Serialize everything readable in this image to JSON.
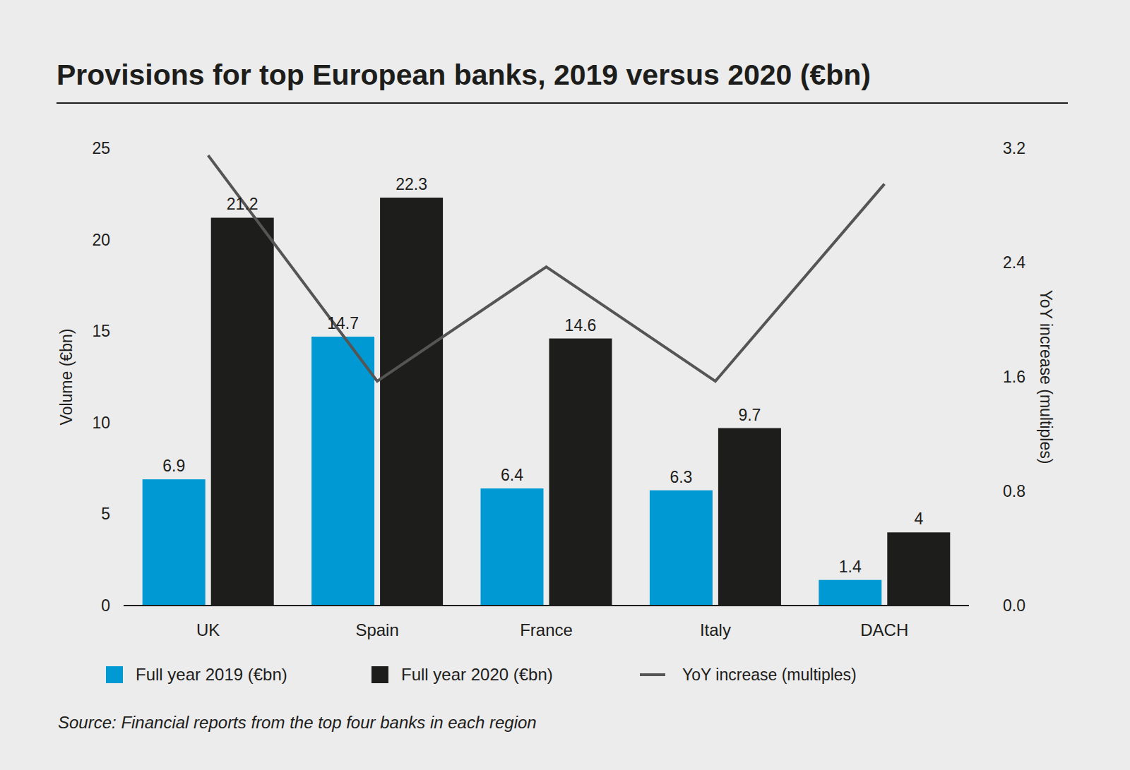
{
  "chart_data": {
    "type": "bar",
    "title": "Provisions for top European banks, 2019 versus 2020 (€bn)",
    "y_label": "Volume (€bn)",
    "y2_label": "YoY increase (multiples)",
    "source": "Source: Financial reports from the top four banks in each region",
    "categories": [
      "UK",
      "Spain",
      "France",
      "Italy",
      "DACH"
    ],
    "series": [
      {
        "name": "Full year 2019 (€bn)",
        "color": "#0099d4",
        "values": [
          6.9,
          14.7,
          6.4,
          6.3,
          1.4
        ],
        "data_labels": true
      },
      {
        "name": "Full year 2020 (€bn)",
        "color": "#1d1d1b",
        "values": [
          21.2,
          22.3,
          14.6,
          9.7,
          4
        ],
        "data_labels": true
      },
      {
        "name": "YoY increase (multiples)",
        "type": "line",
        "axis": "y2",
        "color": "#555555",
        "values": [
          3.15,
          1.57,
          2.37,
          1.57,
          2.95
        ],
        "data_labels": false
      }
    ],
    "ylim": [
      0,
      25
    ],
    "yticks": [
      0,
      5,
      10,
      15,
      20,
      25
    ],
    "y2lim": [
      0,
      3.2
    ],
    "y2ticks": [
      {
        "value": 0,
        "label": "0.0"
      },
      0.8,
      1.6,
      2.4,
      3.2
    ],
    "legend": "bottom",
    "grid": false
  }
}
